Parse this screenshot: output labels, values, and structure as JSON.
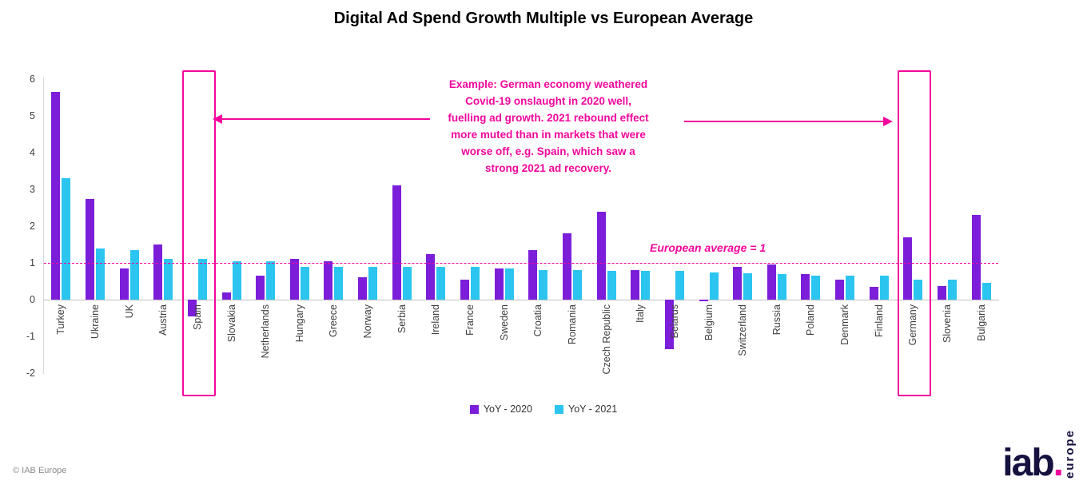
{
  "colors": {
    "magenta": "#F2079C",
    "purple": "#7C1ED9",
    "cyan": "#2BC5F0",
    "navy": "#16123F",
    "axis_text": "#404040"
  },
  "chart_data": {
    "type": "bar",
    "title": "Digital Ad Spend Growth Multiple vs European Average",
    "categories": [
      "Turkey",
      "Ukraine",
      "UK",
      "Austria",
      "Spain",
      "Slovakia",
      "Netherlands",
      "Hungary",
      "Greece",
      "Norway",
      "Serbia",
      "Ireland",
      "France",
      "Sweden",
      "Croatia",
      "Romania",
      "Czech Republic",
      "Italy",
      "Belarus",
      "Belgium",
      "Switzerland",
      "Russia",
      "Poland",
      "Denmark",
      "Finland",
      "Germany",
      "Slovenia",
      "Bulgaria"
    ],
    "series": [
      {
        "name": "YoY - 2020",
        "color": "#7C1ED9",
        "values": [
          5.65,
          2.75,
          0.85,
          1.5,
          -0.45,
          0.2,
          0.65,
          1.1,
          1.05,
          0.6,
          3.1,
          1.25,
          0.55,
          0.85,
          1.35,
          1.8,
          2.4,
          0.8,
          -1.35,
          -0.05,
          0.9,
          0.95,
          0.7,
          0.55,
          0.35,
          1.7,
          0.38,
          2.3
        ]
      },
      {
        "name": "YoY - 2021",
        "color": "#2BC5F0",
        "values": [
          3.3,
          1.4,
          1.35,
          1.1,
          1.1,
          1.05,
          1.05,
          0.9,
          0.9,
          0.9,
          0.9,
          0.9,
          0.9,
          0.85,
          0.8,
          0.8,
          0.78,
          0.78,
          0.78,
          0.75,
          0.72,
          0.7,
          0.65,
          0.65,
          0.65,
          0.55,
          0.55,
          0.45
        ]
      }
    ],
    "yticks": [
      6,
      5,
      4,
      3,
      2,
      1,
      0,
      -1,
      -2
    ],
    "ylim": [
      -2,
      6
    ],
    "grid": "off",
    "legend_position": "bottom",
    "reference_line": {
      "value": 1,
      "label": "European average = 1"
    },
    "highlighted_categories": [
      "Spain",
      "Germany"
    ],
    "annotation_lines": [
      "Example: German economy weathered",
      "Covid-19 onslaught in 2020 well,",
      "fuelling ad growth. 2021 rebound effect",
      "more muted than in markets that were",
      "worse off, e.g. Spain, which saw a",
      "strong 2021 ad recovery."
    ]
  },
  "footer": {
    "copyright": "© IAB Europe"
  },
  "logo": {
    "name": "iab",
    "dot": ".",
    "region": "europe"
  }
}
